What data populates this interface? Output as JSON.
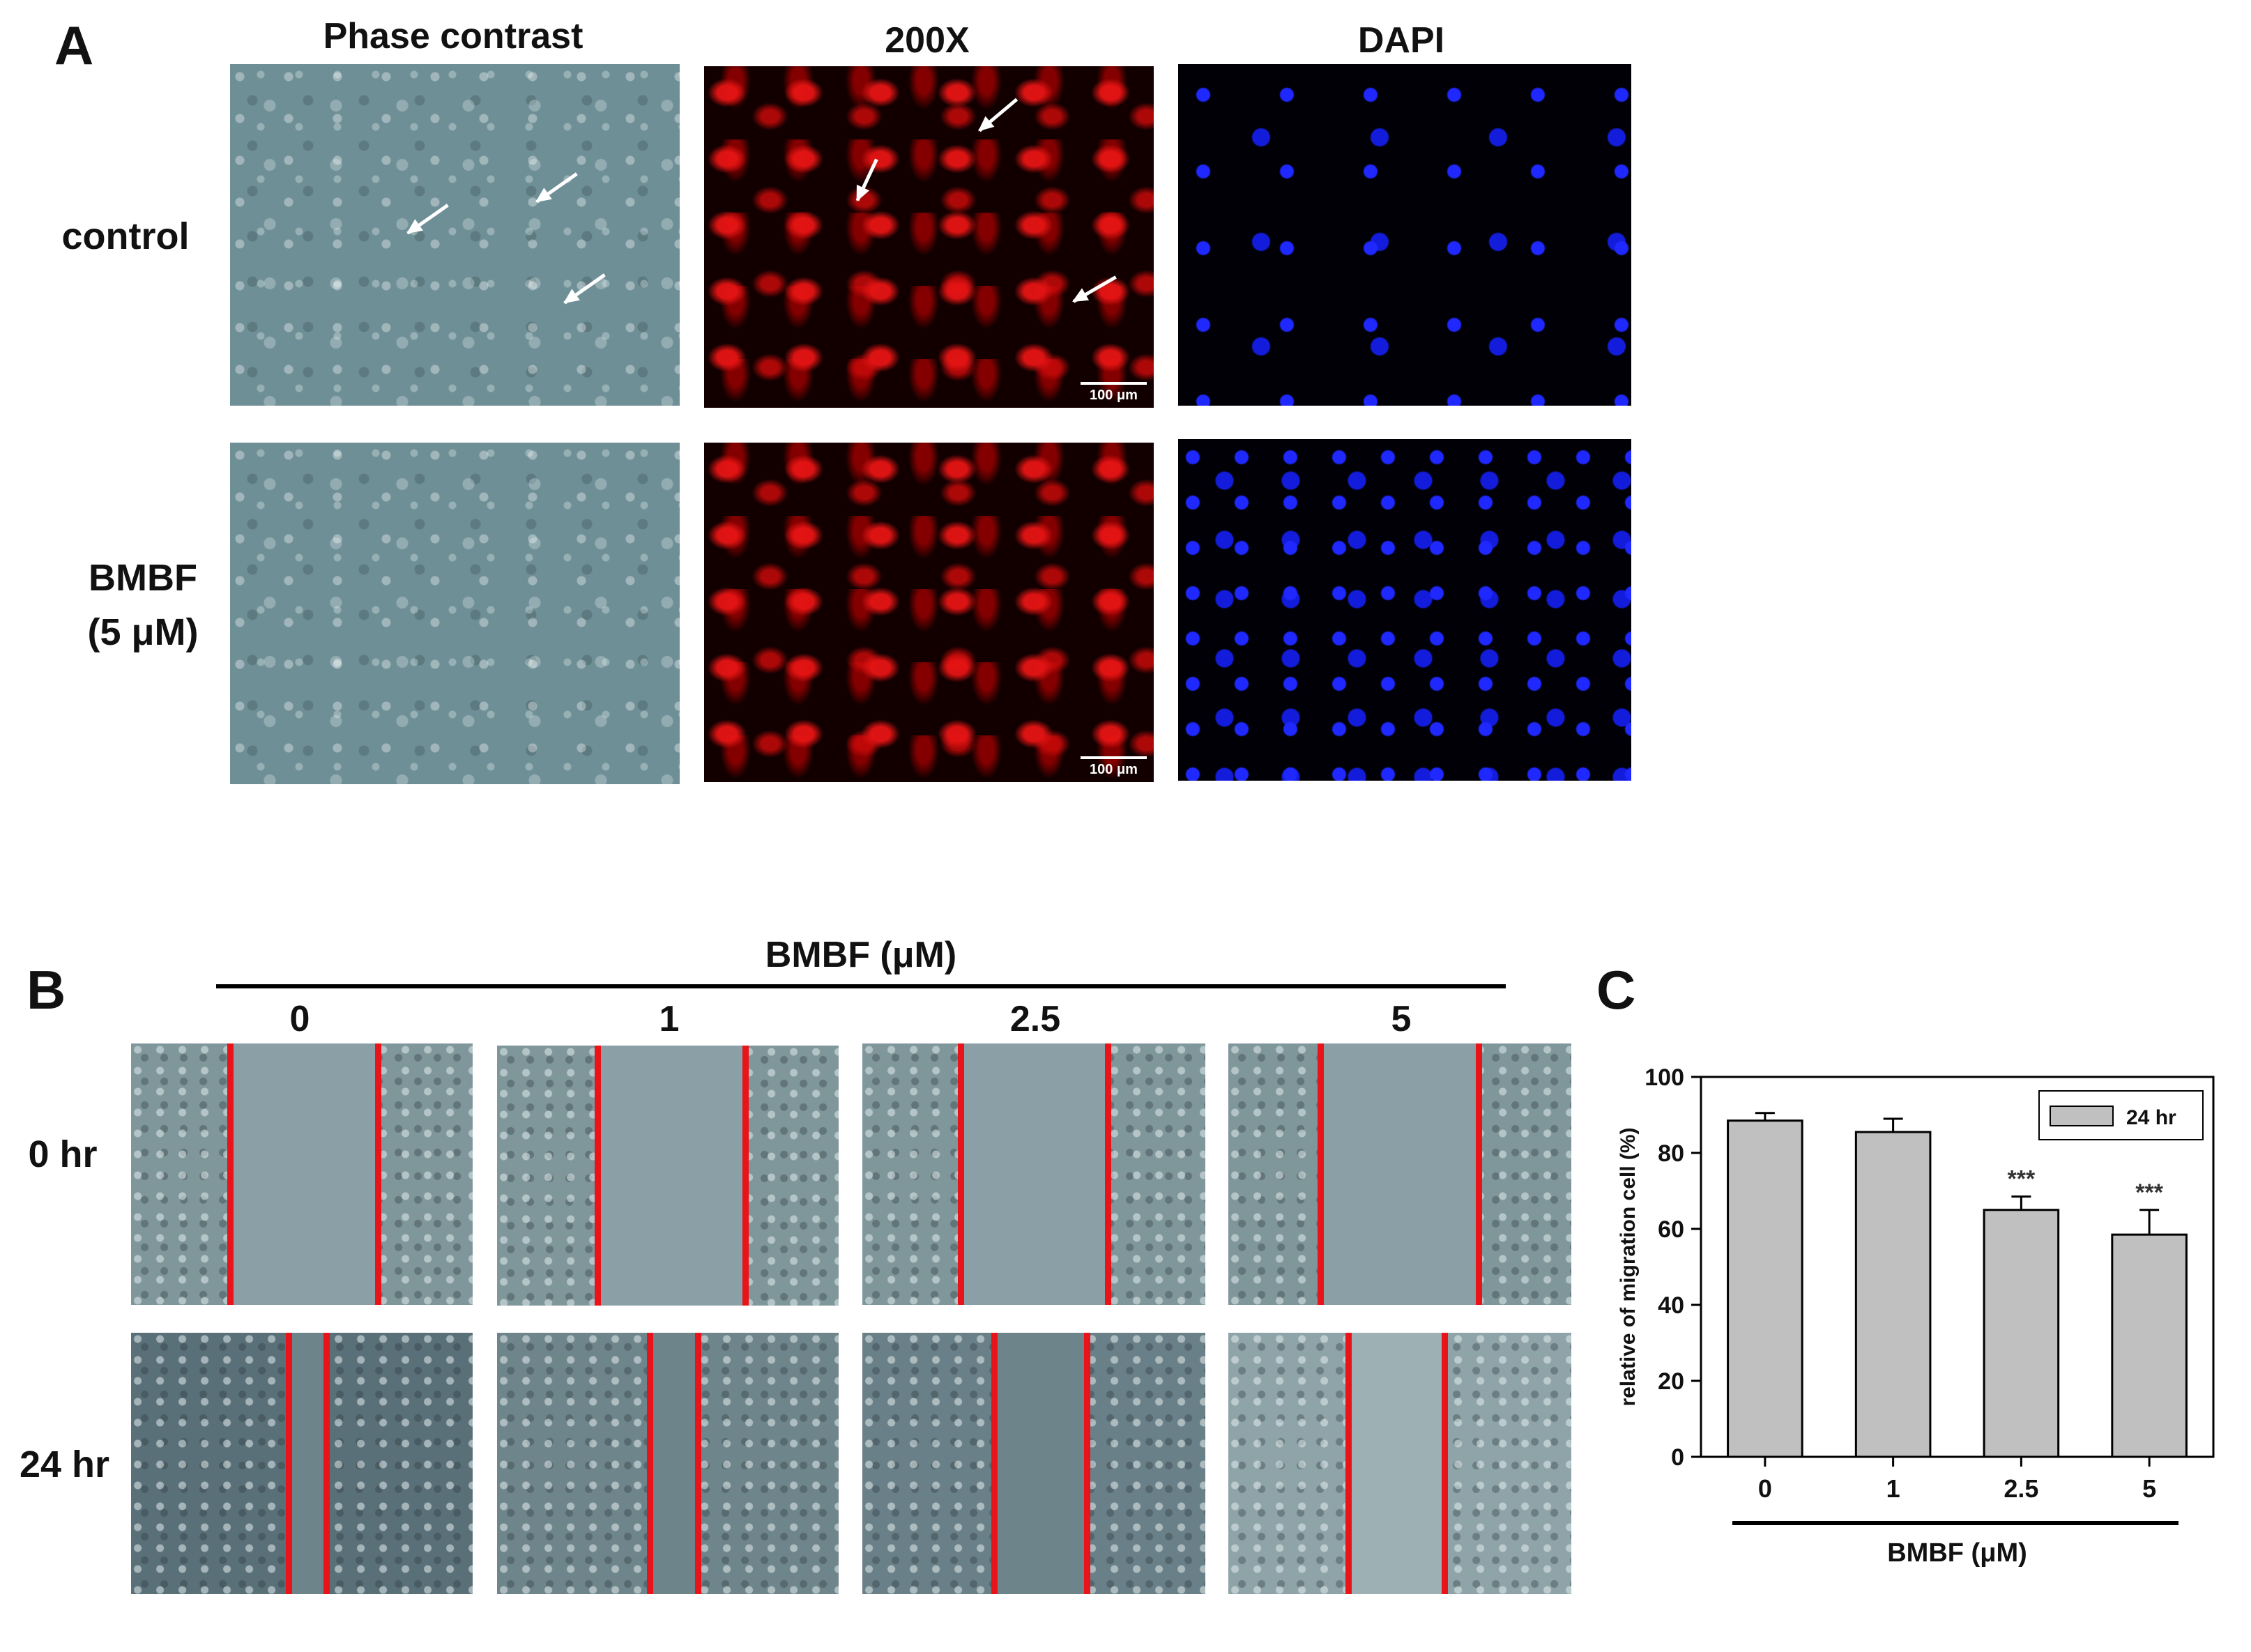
{
  "panel_a": {
    "letter": "A",
    "columns": [
      "Phase contrast",
      "200X",
      "DAPI"
    ],
    "rows": [
      {
        "label_lines": [
          "control"
        ]
      },
      {
        "label_lines": [
          "BMBF",
          "(5 μM)"
        ]
      }
    ],
    "scale_bar_label": "100 μm"
  },
  "panel_b": {
    "letter": "B",
    "group_title": "BMBF (μM)",
    "columns": [
      "0",
      "1",
      "2.5",
      "5"
    ],
    "rows": [
      "0 hr",
      "24 hr"
    ]
  },
  "panel_c": {
    "letter": "C",
    "chart_data": {
      "type": "bar",
      "categories": [
        "0",
        "1",
        "2.5",
        "5"
      ],
      "series": [
        {
          "name": "24 hr",
          "values": [
            88.5,
            85.5,
            65.0,
            58.5
          ]
        }
      ],
      "errors": [
        2.0,
        3.5,
        3.5,
        6.5
      ],
      "annotations": [
        "",
        "",
        "***",
        "***"
      ],
      "ylabel": "relative of migration cell (%)",
      "xlabel": "BMBF (μM)",
      "ylim": [
        0,
        100
      ],
      "yticks": [
        0,
        20,
        40,
        60,
        80,
        100
      ],
      "legend_position": "top-right",
      "bar_color": "#c0c0c0"
    }
  }
}
